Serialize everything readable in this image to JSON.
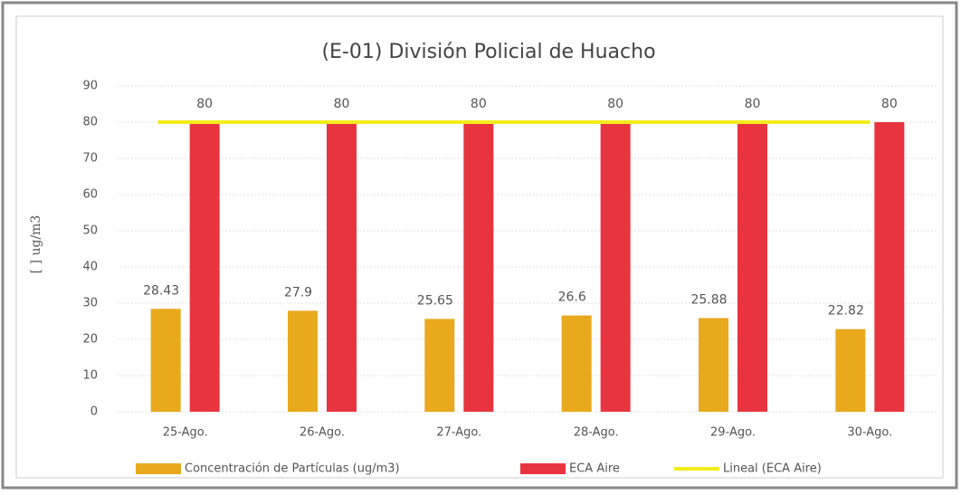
{
  "chart_data": {
    "type": "bar",
    "title": "(E-01) División Policial de Huacho",
    "y_label": "[ ] ug/m3",
    "categories": [
      "25-Ago.",
      "26-Ago.",
      "27-Ago.",
      "28-Ago.",
      "29-Ago.",
      "30-Ago."
    ],
    "series": [
      {
        "name": "Concentración de Partículas (ug/m3)",
        "color": "#e8a91c",
        "type": "bar",
        "values": [
          28.43,
          27.9,
          25.65,
          26.6,
          25.88,
          22.82
        ]
      },
      {
        "name": "ECA Aire",
        "color": "#e8343f",
        "type": "bar",
        "values": [
          80,
          80,
          80,
          80,
          80,
          80
        ]
      },
      {
        "name": "Lineal (ECA Aire)",
        "color": "#f2ec1a",
        "type": "line",
        "values": [
          80,
          80,
          80,
          80,
          80,
          80
        ]
      }
    ],
    "ylim": [
      0,
      90
    ],
    "yticks": [
      0,
      10,
      20,
      30,
      40,
      50,
      60,
      70,
      80,
      90
    ],
    "grid": true,
    "legend": "bottom"
  }
}
